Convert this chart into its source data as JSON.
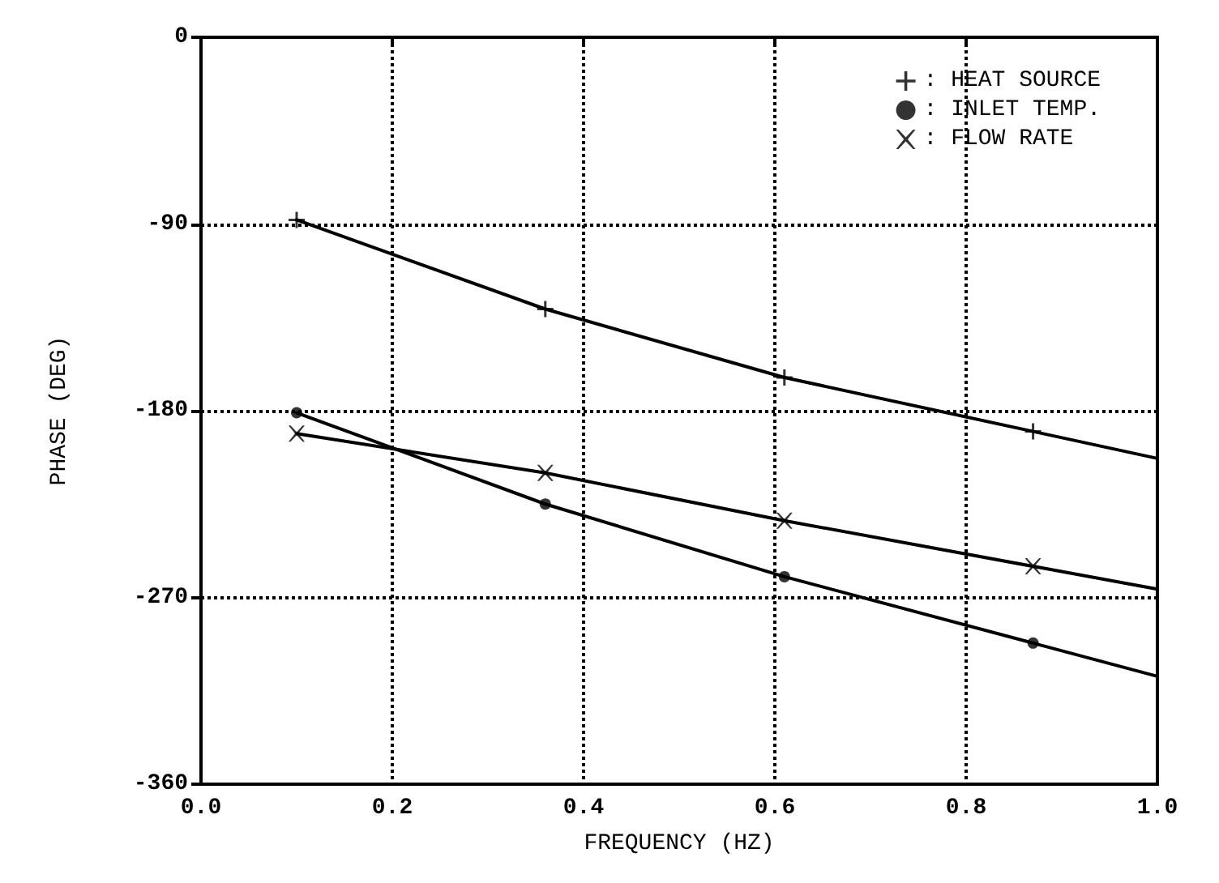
{
  "chart_data": {
    "type": "line",
    "xlabel": "FREQUENCY (HZ)",
    "ylabel": "PHASE (DEG)",
    "xlim": [
      0,
      1
    ],
    "xticks": [
      {
        "value": 0,
        "label": "0.0"
      },
      {
        "value": 0.2,
        "label": "0.2"
      },
      {
        "value": 0.4,
        "label": "0.4"
      },
      {
        "value": 0.6,
        "label": "0.6"
      },
      {
        "value": 0.8,
        "label": "0.8"
      },
      {
        "value": 1,
        "label": "1.0"
      }
    ],
    "ylim": [
      -360,
      0
    ],
    "yticks": [
      -360,
      -270,
      -180,
      -90,
      0
    ],
    "grid": true,
    "legend": "top right",
    "line_style": "solid",
    "x": [
      0.1,
      0.36,
      0.61,
      0.87,
      1.0
    ],
    "series": [
      {
        "color": "#000000",
        "marker": "none",
        "values": [
          -88,
          -131,
          -164,
          -190,
          -203
        ]
      },
      {
        "color": "#000000",
        "marker": "none",
        "values": [
          -181,
          -225,
          -260,
          -292,
          -308
        ]
      },
      {
        "color": "#000000",
        "marker": "none",
        "values": [
          -191,
          -210,
          -233,
          -255,
          -266
        ]
      },
      {
        "type": "scatter",
        "name": ": HEAT SOURCE",
        "color": "#000000",
        "marker": "plus",
        "x": [
          0.1,
          0.36,
          0.61,
          0.87
        ],
        "values": [
          -88,
          -131,
          -164,
          -190
        ]
      },
      {
        "type": "scatter",
        "name": ": INLET TEMP.",
        "color": "#000000",
        "marker": "circle",
        "x": [
          0.1,
          0.36,
          0.61,
          0.87
        ],
        "values": [
          -181,
          -225,
          -260,
          -292
        ]
      },
      {
        "type": "scatter",
        "name": ": FLOW RATE",
        "color": "#000000",
        "marker": "cross",
        "x": [
          0.1,
          0.36,
          0.61,
          0.87
        ],
        "values": [
          -191,
          -210,
          -233,
          -255
        ]
      }
    ]
  }
}
